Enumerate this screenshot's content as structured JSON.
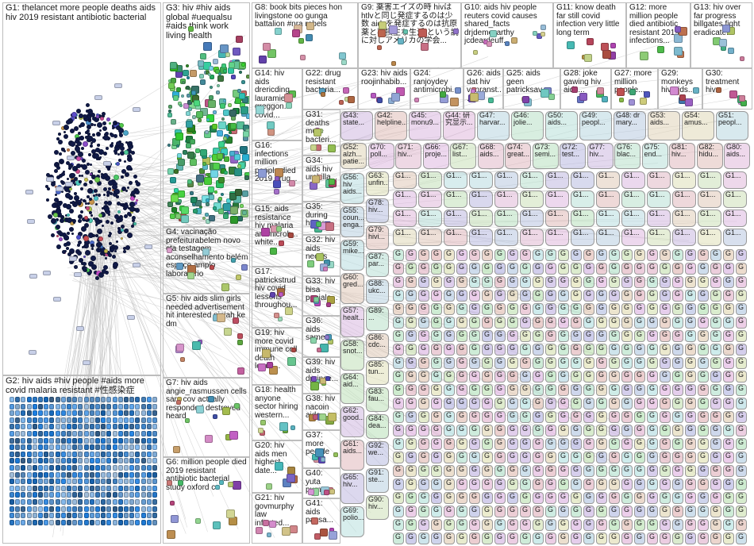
{
  "groups": [
    {
      "id": "G1",
      "text": "G1: thelancet more people deaths aids hiv 2019 resistant antibiotic bacterial",
      "fs": 11,
      "color": "#1a2d6e"
    },
    {
      "id": "G2",
      "text": "G2: hiv aids #hiv people #aids more covid malaria resistant #性感染症",
      "fs": 11,
      "color": "#4c7dc8"
    },
    {
      "id": "G3",
      "text": "G3: hiv #hiv aids global #uequalsu #aids think work living health",
      "fs": 11,
      "color": "#2e7d4c"
    },
    {
      "id": "G4",
      "text": "G4: vacinação prefeiturabelem novo cta testagem aconselhamento belém espaço amplo laboratório",
      "fs": 10,
      "color": "#9a9a9a"
    },
    {
      "id": "G5",
      "text": "G5: hiv aids slim girls needed advertisement hit interested ninjah ke dm",
      "fs": 10,
      "color": "#8b2c2c"
    },
    {
      "id": "G6",
      "text": "G6: million people died 2019 resistant antibiotic bacterial study oxford co",
      "fs": 10,
      "color": "#8a6a4a"
    },
    {
      "id": "G7",
      "text": "G7: hiv aids angie_rasmussen cells sars cov actually responded destroyed heard",
      "fs": 10,
      "color": "#b57a3a"
    },
    {
      "id": "G8",
      "text": "G8: book bits pieces hon livingstone oo gunga battalion #nra rebels",
      "fs": 10,
      "color": "#777"
    },
    {
      "id": "G9",
      "text": "G9: 薬害エイズの時 hivは htlvと同じ発症するのは少数 aidsを発症するのは抗原薬と不摂生な生活 という説に対しアメリカの学会...",
      "fs": 10,
      "color": "#777"
    },
    {
      "id": "G10",
      "text": "G10: aids hiv people reuters covid causes shared_facts drjdemccarthy jcdeardeuff...",
      "fs": 10,
      "color": "#777"
    },
    {
      "id": "G11",
      "text": "G11: know death far still covid infection very little long term",
      "fs": 10,
      "color": "#777"
    },
    {
      "id": "G12",
      "text": "G12: more million people died antibiotic resistant 2019 infections...",
      "fs": 10,
      "color": "#777"
    },
    {
      "id": "G13",
      "text": "G13: hiv over far progress billgates fight eradicate...",
      "fs": 10,
      "color": "#777"
    },
    {
      "id": "G14",
      "text": "G14: hiv aids drericding lauramiers greggon... covid...",
      "fs": 10,
      "color": "#777"
    },
    {
      "id": "G15",
      "text": "G15: aids resistance hiv malaria antimicrob... white...",
      "fs": 10,
      "color": "#777"
    },
    {
      "id": "G16",
      "text": "G16: infections million people died 2019 drug...",
      "fs": 10,
      "color": "#777"
    },
    {
      "id": "G17",
      "text": "G17: patrickstrud hiv covid lessons throughou...",
      "fs": 10,
      "color": "#777"
    },
    {
      "id": "G18",
      "text": "G18: health anyone sector hiring western...",
      "fs": 10,
      "color": "#777"
    },
    {
      "id": "G19",
      "text": "G19: hiv more covid immune cell death leads...",
      "fs": 10,
      "color": "#777"
    },
    {
      "id": "G20",
      "text": "G20: hiv aids men highest date...",
      "fs": 10,
      "color": "#777"
    },
    {
      "id": "G21",
      "text": "G21: hiv govmurphy law infected...",
      "fs": 10,
      "color": "#777"
    },
    {
      "id": "G22",
      "text": "G22: drug resistant bacteria...",
      "fs": 10,
      "color": "#777"
    },
    {
      "id": "G23",
      "text": "G23: hiv aids roojinhabib...",
      "fs": 10,
      "color": "#777"
    },
    {
      "id": "G24",
      "text": "G24: ranjoydey antimicrobi...",
      "fs": 10,
      "color": "#777"
    },
    {
      "id": "G26",
      "text": "G26: aids dat hiv vanranst...",
      "fs": 10,
      "color": "#777"
    },
    {
      "id": "G25",
      "text": "G25: aids geen patricksav...",
      "fs": 10,
      "color": "#777"
    },
    {
      "id": "G28",
      "text": "G28: joke gawing hiv aids...",
      "fs": 10,
      "color": "#777"
    },
    {
      "id": "G27",
      "text": "G27: more million people...",
      "fs": 10,
      "color": "#777"
    },
    {
      "id": "G29",
      "text": "G29: monkeys hiv aids...",
      "fs": 10,
      "color": "#777"
    },
    {
      "id": "G30",
      "text": "G30: treatment hiv...",
      "fs": 10,
      "color": "#777"
    },
    {
      "id": "G31",
      "text": "G31: deaths more bacteri...",
      "fs": 10,
      "color": "#777"
    },
    {
      "id": "G34",
      "text": "G34: aids hiv urchilla...",
      "fs": 10,
      "color": "#777"
    },
    {
      "id": "G35",
      "text": "G35: during harry...",
      "fs": 10,
      "color": "#777"
    },
    {
      "id": "G32",
      "text": "G32: hiv aids needs",
      "fs": 10,
      "color": "#777"
    },
    {
      "id": "G33",
      "text": "G33: hiv bisa penjala...",
      "fs": 10,
      "color": "#777"
    },
    {
      "id": "G36",
      "text": "G36: aids same...",
      "fs": 10,
      "color": "#777"
    },
    {
      "id": "G39",
      "text": "G39: hiv aids dprince...",
      "fs": 10,
      "color": "#777"
    },
    {
      "id": "G38",
      "text": "G38: hiv nacoin aids...",
      "fs": 10,
      "color": "#777"
    },
    {
      "id": "G37",
      "text": "G37: more people",
      "fs": 10,
      "color": "#777"
    },
    {
      "id": "G40",
      "text": "G40: yuta pumz...",
      "fs": 10,
      "color": "#777"
    },
    {
      "id": "G41",
      "text": "G41: aids passa...",
      "fs": 10,
      "color": "#777"
    }
  ],
  "small_labels": [
    "G43: state...",
    "G42: helpline...",
    "G45: monu9...",
    "G44: 研究显示...",
    "G47: harvar...",
    "G46: jolie...",
    "G50: aids...",
    "G49: peopl...",
    "G48: dr mary...",
    "G53: aids...",
    "G54: amus...",
    "G51: peopl...",
    "G52: alzh... patie...",
    "G70: poll...",
    "G71: hiv...",
    "G66: proje...",
    "G67: list...",
    "G68: aids...",
    "G74: great...",
    "G73: semi...",
    "G72: test...",
    "G77: hiv...",
    "G76: blac...",
    "G75: end...",
    "G81: hiv...",
    "G82: hidu...",
    "G80: aids...",
    "G56: hiv aids...",
    "G55: coun... enga...",
    "G59: mike...",
    "G60: gred...",
    "G57: healt...",
    "G58: snot...",
    "G64: aid...",
    "G62: good...",
    "G61: aids...",
    "G65: hiv...",
    "G69: polio...",
    "G63: unfin...",
    "G78: hiv...",
    "G79: hivi...",
    "G87: par...",
    "G88: ukc...",
    "G89: ...",
    "G86: cdc...",
    "G85: tun...",
    "G83: fau...",
    "G84: dea...",
    "G92: we...",
    "G91: ste...",
    "G90: hiv..."
  ],
  "glyph": "G",
  "glyph_g1": "G1..."
}
